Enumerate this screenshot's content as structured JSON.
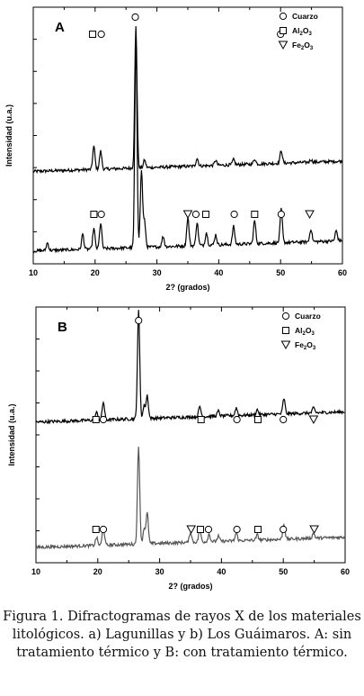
{
  "chart_data": [
    {
      "type": "line",
      "panel_label": "A",
      "xlabel": "2? (grados)",
      "ylabel": "Intensidad (u.a.)",
      "xlim": [
        10,
        60
      ],
      "x_ticks": [
        "10",
        "20",
        "30",
        "40",
        "50",
        "60"
      ],
      "legend": [
        {
          "symbol": "circle",
          "label": "Cuarzo"
        },
        {
          "symbol": "square",
          "label": "Al",
          "sub": [
            "2",
            "3"
          ]
        },
        {
          "symbol": "triangle",
          "label": "Fe",
          "sub": [
            "2",
            "3"
          ]
        }
      ],
      "series": [
        {
          "color": "#000000",
          "baseline": 0.36,
          "peaks": [
            [
              19.8,
              0.09
            ],
            [
              20.9,
              0.07
            ],
            [
              26.6,
              0.55
            ],
            [
              28.0,
              0.03
            ],
            [
              36.5,
              0.03
            ],
            [
              39.5,
              0.02
            ],
            [
              42.4,
              0.02
            ],
            [
              45.8,
              0.02
            ],
            [
              50.1,
              0.05
            ],
            [
              54.9,
              0.01
            ]
          ]
        },
        {
          "color": "#000000",
          "baseline": 0.05,
          "peaks": [
            [
              12.3,
              0.03
            ],
            [
              18.0,
              0.06
            ],
            [
              19.8,
              0.08
            ],
            [
              20.9,
              0.1
            ],
            [
              26.6,
              0.8
            ],
            [
              27.5,
              0.3
            ],
            [
              28.0,
              0.1
            ],
            [
              31.0,
              0.04
            ],
            [
              35.0,
              0.11
            ],
            [
              36.5,
              0.09
            ],
            [
              38.0,
              0.05
            ],
            [
              39.5,
              0.04
            ],
            [
              42.4,
              0.07
            ],
            [
              45.8,
              0.09
            ],
            [
              50.1,
              0.13
            ],
            [
              54.9,
              0.05
            ],
            [
              59.0,
              0.04
            ]
          ]
        }
      ],
      "markers": [
        {
          "x": 26.5,
          "symbol": "circle",
          "row": 1
        },
        {
          "x": 19.6,
          "symbol": "square",
          "row": 0
        },
        {
          "x": 21.0,
          "symbol": "circle",
          "row": 0
        },
        {
          "x": 50.0,
          "symbol": "circle",
          "row": 0
        },
        {
          "x": 21.0,
          "symbol": "circle",
          "row": 2
        },
        {
          "x": 19.8,
          "symbol": "square",
          "row": 2
        },
        {
          "x": 35.0,
          "symbol": "triangle",
          "row": 2
        },
        {
          "x": 36.3,
          "symbol": "circle",
          "row": 2
        },
        {
          "x": 37.9,
          "symbol": "square",
          "row": 2
        },
        {
          "x": 42.5,
          "symbol": "circle",
          "row": 2
        },
        {
          "x": 45.8,
          "symbol": "square",
          "row": 2
        },
        {
          "x": 50.1,
          "symbol": "circle",
          "row": 2
        },
        {
          "x": 54.7,
          "symbol": "triangle",
          "row": 2
        }
      ]
    },
    {
      "type": "line",
      "panel_label": "B",
      "xlabel": "2? (grados)",
      "ylabel": "Intensidad (u.a.)",
      "xlim": [
        10,
        60
      ],
      "x_ticks": [
        "10",
        "20",
        "30",
        "40",
        "50",
        "60"
      ],
      "legend": [
        {
          "symbol": "circle",
          "label": "Cuarzo"
        },
        {
          "symbol": "square",
          "label": "Al",
          "sub": [
            "2",
            "3"
          ]
        },
        {
          "symbol": "triangle",
          "label": "Fe",
          "sub": [
            "2",
            "3"
          ]
        }
      ],
      "series": [
        {
          "color": "#000000",
          "baseline": 0.55,
          "peaks": [
            [
              19.8,
              0.03
            ],
            [
              20.9,
              0.07
            ],
            [
              26.6,
              0.42
            ],
            [
              27.5,
              0.05
            ],
            [
              28.0,
              0.09
            ],
            [
              36.5,
              0.04
            ],
            [
              39.5,
              0.02
            ],
            [
              42.4,
              0.03
            ],
            [
              45.8,
              0.02
            ],
            [
              50.1,
              0.06
            ],
            [
              54.9,
              0.02
            ]
          ]
        },
        {
          "color": "#555555",
          "baseline": 0.06,
          "peaks": [
            [
              19.8,
              0.03
            ],
            [
              20.9,
              0.07
            ],
            [
              26.6,
              0.38
            ],
            [
              27.5,
              0.06
            ],
            [
              28.0,
              0.12
            ],
            [
              35.0,
              0.04
            ],
            [
              36.5,
              0.05
            ],
            [
              38.0,
              0.03
            ],
            [
              39.5,
              0.02
            ],
            [
              42.4,
              0.03
            ],
            [
              45.8,
              0.02
            ],
            [
              50.1,
              0.06
            ],
            [
              54.9,
              0.02
            ]
          ]
        }
      ],
      "markers": [
        {
          "x": 26.6,
          "symbol": "circle",
          "row": 1
        },
        {
          "x": 20.9,
          "symbol": "circle",
          "row": 0
        },
        {
          "x": 19.7,
          "symbol": "square",
          "row": 0
        },
        {
          "x": 36.7,
          "symbol": "square",
          "row": 0
        },
        {
          "x": 42.5,
          "symbol": "circle",
          "row": 0
        },
        {
          "x": 45.9,
          "symbol": "square",
          "row": 0
        },
        {
          "x": 50.0,
          "symbol": "circle",
          "row": 0
        },
        {
          "x": 54.9,
          "symbol": "triangle",
          "row": 0
        },
        {
          "x": 20.9,
          "symbol": "circle",
          "row": 2
        },
        {
          "x": 19.7,
          "symbol": "square",
          "row": 2
        },
        {
          "x": 35.1,
          "symbol": "triangle",
          "row": 2
        },
        {
          "x": 36.6,
          "symbol": "square",
          "row": 2
        },
        {
          "x": 37.9,
          "symbol": "circle",
          "row": 2
        },
        {
          "x": 42.5,
          "symbol": "circle",
          "row": 2
        },
        {
          "x": 45.9,
          "symbol": "square",
          "row": 2
        },
        {
          "x": 50.0,
          "symbol": "circle",
          "row": 2
        },
        {
          "x": 55.0,
          "symbol": "triangle",
          "row": 2
        }
      ]
    }
  ],
  "caption": "Figura 1. Difractogramas de rayos X de los materiales litológicos. a) Lagunillas y b)  Los Guáimaros. A: sin tratamiento térmico y B: con tratamiento térmico."
}
